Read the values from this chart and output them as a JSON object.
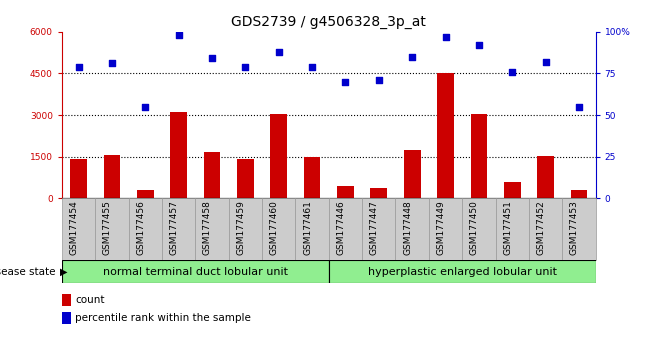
{
  "title": "GDS2739 / g4506328_3p_at",
  "samples": [
    "GSM177454",
    "GSM177455",
    "GSM177456",
    "GSM177457",
    "GSM177458",
    "GSM177459",
    "GSM177460",
    "GSM177461",
    "GSM177446",
    "GSM177447",
    "GSM177448",
    "GSM177449",
    "GSM177450",
    "GSM177451",
    "GSM177452",
    "GSM177453"
  ],
  "counts": [
    1420,
    1550,
    280,
    3100,
    1650,
    1430,
    3030,
    1470,
    430,
    380,
    1750,
    4530,
    3050,
    600,
    1530,
    280
  ],
  "percentiles": [
    79,
    81,
    55,
    98,
    84,
    79,
    88,
    79,
    70,
    71,
    85,
    97,
    92,
    76,
    82,
    55
  ],
  "group1_label": "normal terminal duct lobular unit",
  "group2_label": "hyperplastic enlarged lobular unit",
  "group1_count": 8,
  "group2_count": 8,
  "ylim_left": [
    0,
    6000
  ],
  "ylim_right": [
    0,
    100
  ],
  "yticks_left": [
    0,
    1500,
    3000,
    4500,
    6000
  ],
  "ytick_labels_left": [
    "0",
    "1500",
    "3000",
    "4500",
    "6000"
  ],
  "ytick_labels_right": [
    "0",
    "25",
    "50",
    "75",
    "100%"
  ],
  "bar_color": "#cc0000",
  "dot_color": "#0000cc",
  "bg_color": "#ffffff",
  "disease_state_label": "disease state",
  "legend_count_label": "count",
  "legend_pct_label": "percentile rank within the sample",
  "title_fontsize": 10,
  "tick_label_fontsize": 6.5,
  "group_label_fontsize": 8,
  "group1_color": "#90ee90",
  "group2_color": "#90ee90",
  "xtick_bg_color": "#cccccc",
  "xtick_border_color": "#999999"
}
